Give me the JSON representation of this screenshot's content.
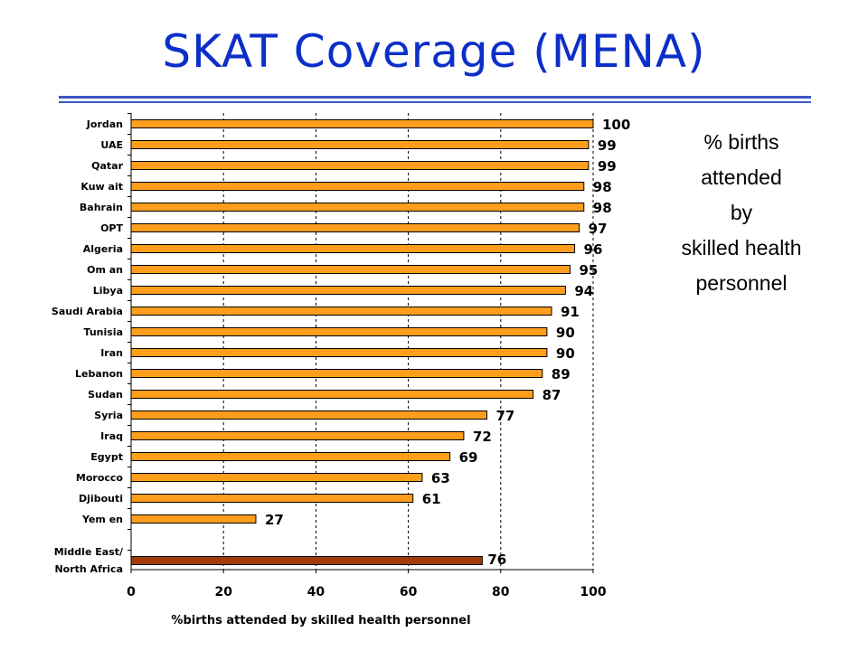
{
  "title": "SKAT Coverage (MENA)",
  "note_lines": [
    "% births",
    "attended",
    "by",
    "skilled health",
    "personnel"
  ],
  "colors": {
    "bar": "#ff9d1c",
    "aggregate_bar": "#a23a0a",
    "title": "#0b2fc8"
  },
  "chart_data": {
    "type": "bar",
    "orientation": "horizontal",
    "categories": [
      "Jordan",
      "UAE",
      "Qatar",
      "Kuw ait",
      "Bahrain",
      "OPT",
      "Algeria",
      "Om an",
      "Libya",
      "Saudi Arabia",
      "Tunisia",
      "Iran",
      "Lebanon",
      "Sudan",
      "Syria",
      "Iraq",
      "Egypt",
      "Morocco",
      "Djibouti",
      "Yem en"
    ],
    "values": [
      100,
      99,
      99,
      98,
      98,
      97,
      96,
      95,
      94,
      91,
      90,
      90,
      89,
      87,
      77,
      72,
      69,
      63,
      61,
      27
    ],
    "aggregate": {
      "label_lines": [
        "Middle East/",
        "North Africa"
      ],
      "value": 76
    },
    "xlabel": "%births attended by skilled health personnel",
    "xlim": [
      0,
      100
    ],
    "xticks": [
      0,
      20,
      40,
      60,
      80,
      100
    ],
    "grid": "vertical dashed"
  }
}
